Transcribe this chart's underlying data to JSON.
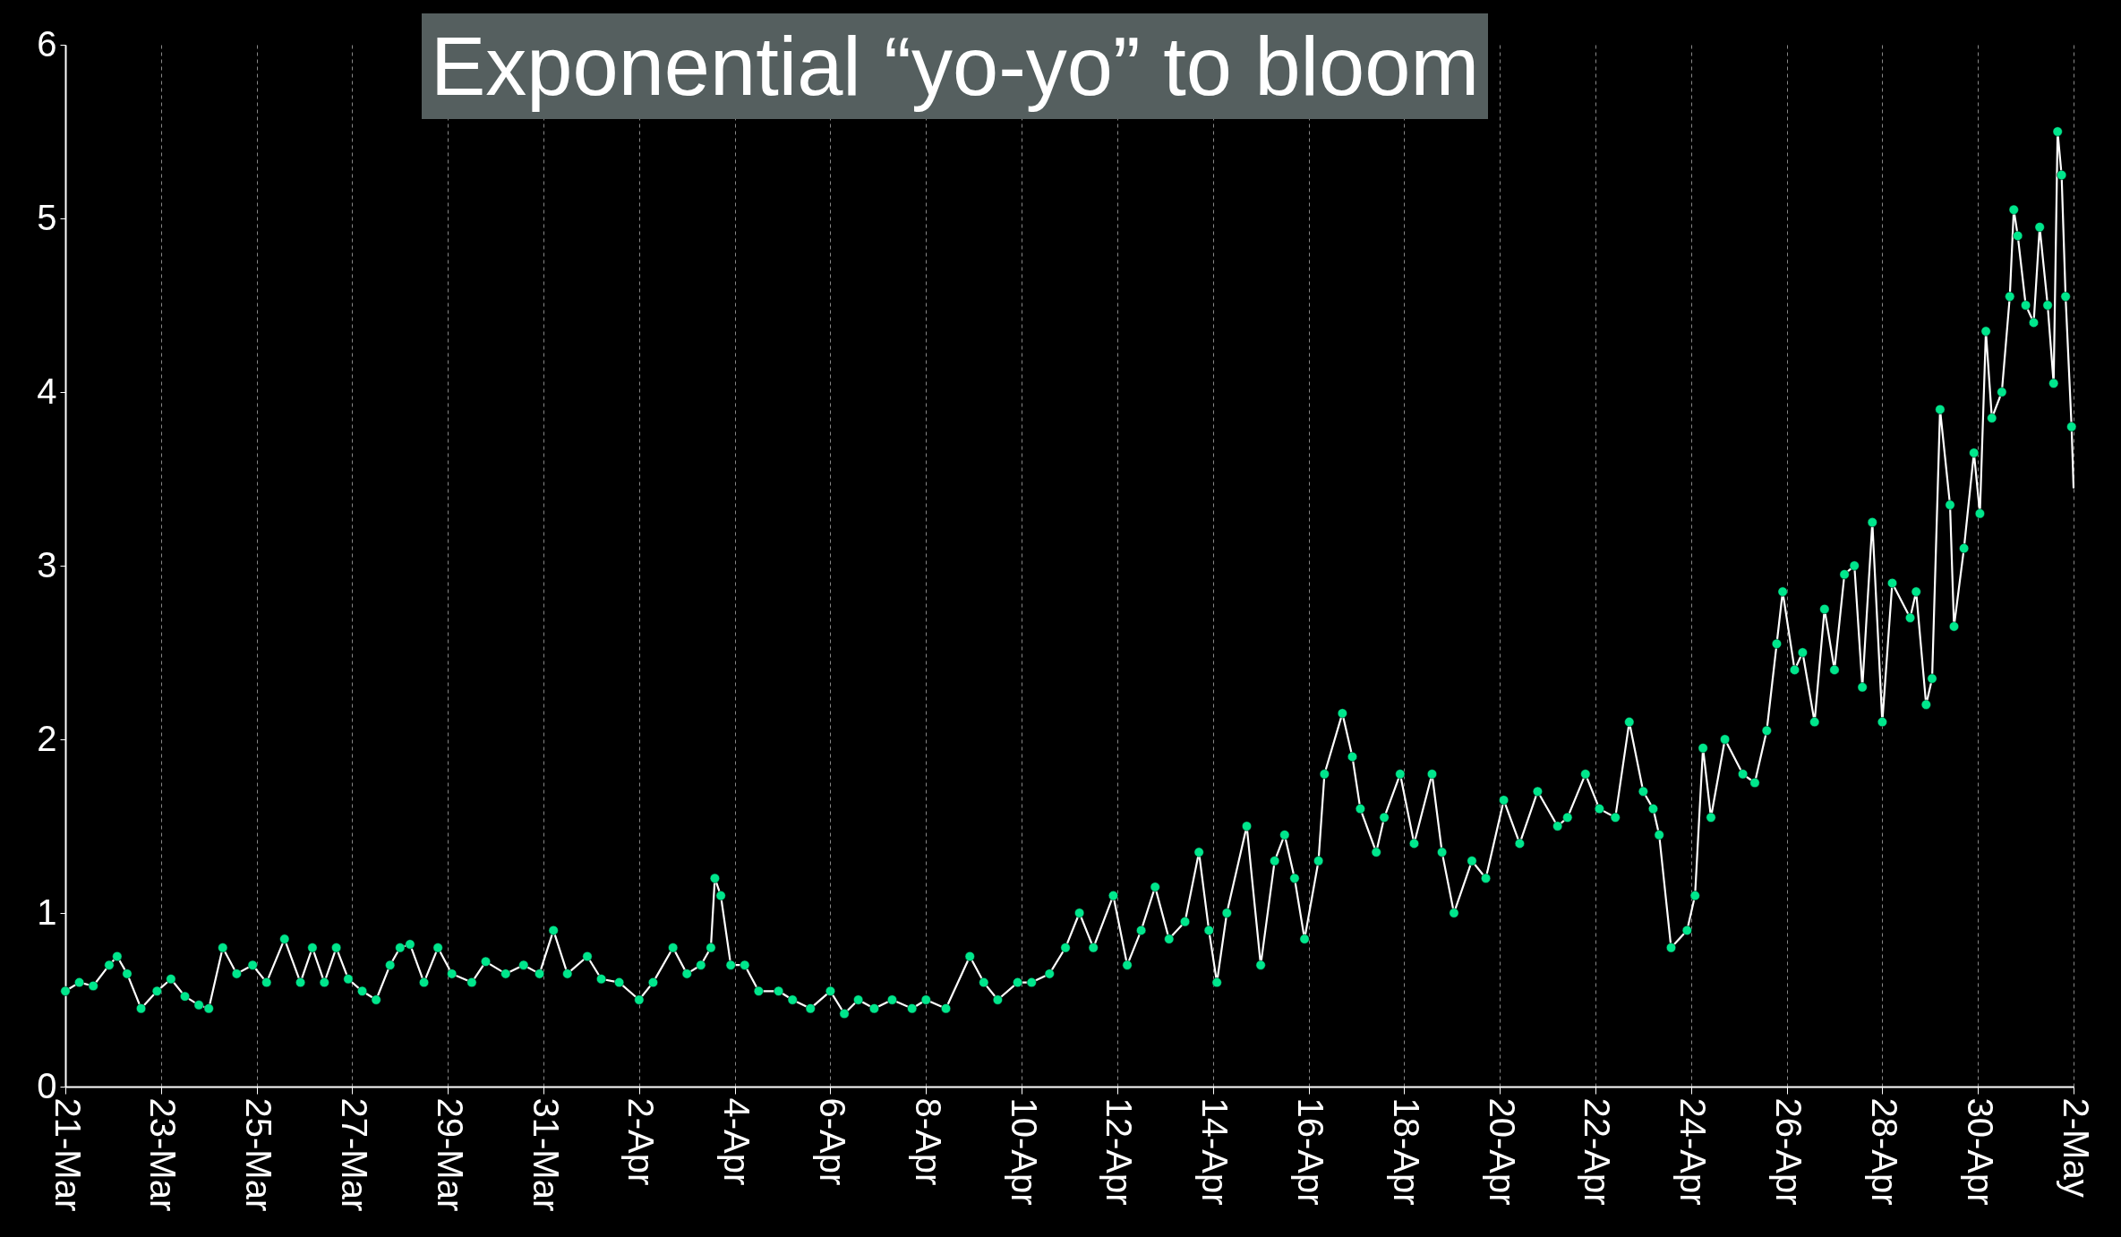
{
  "chart_data": {
    "type": "line",
    "title": "Exponential “yo-yo” to bloom",
    "marker": "circle",
    "grid": "x",
    "xlim": [
      "--03-21",
      "--05-02"
    ],
    "ylim": [
      0,
      6
    ],
    "yticks": [
      0,
      1,
      2,
      3,
      4,
      5,
      6
    ],
    "xticks": [
      {
        "value": "--03-21",
        "label": "21-Mar"
      },
      {
        "value": "--03-23",
        "label": "23-Mar"
      },
      {
        "value": "--03-25",
        "label": "25-Mar"
      },
      {
        "value": "--03-27",
        "label": "27-Mar"
      },
      {
        "value": "--03-29",
        "label": "29-Mar"
      },
      {
        "value": "--03-31",
        "label": "31-Mar"
      },
      {
        "value": "--04-02",
        "label": "2-Apr"
      },
      {
        "value": "--04-04",
        "label": "4-Apr"
      },
      {
        "value": "--04-06",
        "label": "6-Apr"
      },
      {
        "value": "--04-08",
        "label": "8-Apr"
      },
      {
        "value": "--04-10",
        "label": "10-Apr"
      },
      {
        "value": "--04-12",
        "label": "12-Apr"
      },
      {
        "value": "--04-14",
        "label": "14-Apr"
      },
      {
        "value": "--04-16",
        "label": "16-Apr"
      },
      {
        "value": "--04-18",
        "label": "18-Apr"
      },
      {
        "value": "--04-20",
        "label": "20-Apr"
      },
      {
        "value": "--04-22",
        "label": "22-Apr"
      },
      {
        "value": "--04-24",
        "label": "24-Apr"
      },
      {
        "value": "--04-26",
        "label": "26-Apr"
      },
      {
        "value": "--04-28",
        "label": "28-Apr"
      },
      {
        "value": "--04-30",
        "label": "30-Apr"
      },
      {
        "value": "--05-02",
        "label": "2-May"
      }
    ],
    "x": [
      "--03-21T00:00",
      "--03-21T07:00",
      "--03-21T14:00",
      "--03-21T22:00",
      "--03-22T02:00",
      "--03-22T07:00",
      "--03-22T14:00",
      "--03-22T22:00",
      "--03-23T05:00",
      "--03-23T12:00",
      "--03-23T19:00",
      "--03-24T00:00",
      "--03-24T07:00",
      "--03-24T14:00",
      "--03-24T22:00",
      "--03-25T05:00",
      "--03-25T14:00",
      "--03-25T22:00",
      "--03-26T04:00",
      "--03-26T10:00",
      "--03-26T16:00",
      "--03-26T22:00",
      "--03-27T05:00",
      "--03-27T12:00",
      "--03-27T19:00",
      "--03-28T00:00",
      "--03-28T05:00",
      "--03-28T12:00",
      "--03-28T19:00",
      "--03-29T02:00",
      "--03-29T12:00",
      "--03-29T19:00",
      "--03-30T05:00",
      "--03-30T14:00",
      "--03-30T22:00",
      "--03-31T05:00",
      "--03-31T12:00",
      "--03-31T22:00",
      "--04-01T05:00",
      "--04-01T14:00",
      "--04-02T00:00",
      "--04-02T07:00",
      "--04-02T17:00",
      "--04-03T00:00",
      "--04-03T07:00",
      "--04-03T12:00",
      "--04-03T14:00",
      "--04-03T17:00",
      "--04-03T22:00",
      "--04-04T05:00",
      "--04-04T12:00",
      "--04-04T22:00",
      "--04-05T05:00",
      "--04-05T14:00",
      "--04-06T00:00",
      "--04-06T07:00",
      "--04-06T14:00",
      "--04-06T22:00",
      "--04-07T07:00",
      "--04-07T17:00",
      "--04-08T00:00",
      "--04-08T10:00",
      "--04-08T22:00",
      "--04-09T05:00",
      "--04-09T12:00",
      "--04-09T22:00",
      "--04-10T05:00",
      "--04-10T14:00",
      "--04-10T22:00",
      "--04-11T05:00",
      "--04-11T12:00",
      "--04-11T22:00",
      "--04-12T05:00",
      "--04-12T12:00",
      "--04-12T19:00",
      "--04-13T02:00",
      "--04-13T10:00",
      "--04-13T17:00",
      "--04-13T22:00",
      "--04-14T02:00",
      "--04-14T07:00",
      "--04-14T17:00",
      "--04-15T00:00",
      "--04-15T07:00",
      "--04-15T12:00",
      "--04-15T17:00",
      "--04-15T22:00",
      "--04-16T05:00",
      "--04-16T08:00",
      "--04-16T17:00",
      "--04-16T22:00",
      "--04-17T02:00",
      "--04-17T10:00",
      "--04-17T14:00",
      "--04-17T22:00",
      "--04-18T05:00",
      "--04-18T14:00",
      "--04-18T19:00",
      "--04-19T01:00",
      "--04-19T10:00",
      "--04-19T17:00",
      "--04-20T02:00",
      "--04-20T10:00",
      "--04-20T19:00",
      "--04-21T05:00",
      "--04-21T10:00",
      "--04-21T19:00",
      "--04-22T02:00",
      "--04-22T10:00",
      "--04-22T17:00",
      "--04-23T00:00",
      "--04-23T05:00",
      "--04-23T08:00",
      "--04-23T14:00",
      "--04-23T22:00",
      "--04-24T02:00",
      "--04-24T06:00",
      "--04-24T10:00",
      "--04-24T17:00",
      "--04-25T02:00",
      "--04-25T08:00",
      "--04-25T14:00",
      "--04-25T19:00",
      "--04-25T22:00",
      "--04-26T04:00",
      "--04-26T08:00",
      "--04-26T14:00",
      "--04-26T19:00",
      "--04-27T00:00",
      "--04-27T05:00",
      "--04-27T10:00",
      "--04-27T14:00",
      "--04-27T19:00",
      "--04-28T00:00",
      "--04-28T05:00",
      "--04-28T14:00",
      "--04-28T17:00",
      "--04-28T22:00",
      "--04-29T01:00",
      "--04-29T05:00",
      "--04-29T10:00",
      "--04-29T12:00",
      "--04-29T17:00",
      "--04-29T22:00",
      "--04-30T01:00",
      "--04-30T04:00",
      "--04-30T07:00",
      "--04-30T12:00",
      "--04-30T16:00",
      "--04-30T18:00",
      "--04-30T20:00",
      "--05-01T00:00",
      "--05-01T04:00",
      "--05-01T07:00",
      "--05-01T11:00",
      "--05-01T14:00",
      "--05-01T16:00",
      "--05-01T18:00",
      "--05-01T20:00",
      "--05-01T23:00",
      "--05-02T00:00"
    ],
    "series": [
      {
        "color": "#00e68c",
        "values": [
          0.55,
          0.6,
          0.58,
          0.7,
          0.75,
          0.65,
          0.45,
          0.55,
          0.62,
          0.52,
          0.47,
          0.45,
          0.8,
          0.65,
          0.7,
          0.6,
          0.85,
          0.6,
          0.8,
          0.6,
          0.8,
          0.62,
          0.55,
          0.5,
          0.7,
          0.8,
          0.82,
          0.6,
          0.8,
          0.65,
          0.6,
          0.72,
          0.65,
          0.7,
          0.65,
          0.9,
          0.65,
          0.75,
          0.62,
          0.6,
          0.5,
          0.6,
          0.8,
          0.65,
          0.7,
          0.8,
          1.2,
          1.1,
          0.7,
          0.7,
          0.55,
          0.55,
          0.5,
          0.45,
          0.55,
          0.42,
          0.5,
          0.45,
          0.5,
          0.45,
          0.5,
          0.45,
          0.75,
          0.6,
          0.5,
          0.6,
          0.6,
          0.65,
          0.8,
          1.0,
          0.8,
          1.1,
          0.7,
          0.9,
          1.15,
          0.85,
          0.95,
          1.35,
          0.9,
          0.6,
          1.0,
          1.5,
          0.7,
          1.3,
          1.45,
          1.2,
          0.85,
          1.3,
          1.8,
          2.15,
          1.9,
          1.6,
          1.35,
          1.55,
          1.8,
          1.4,
          1.8,
          1.35,
          1.0,
          1.3,
          1.2,
          1.65,
          1.4,
          1.7,
          1.5,
          1.55,
          1.8,
          1.6,
          1.55,
          2.1,
          1.7,
          1.6,
          1.45,
          0.8,
          0.9,
          1.1,
          1.95,
          1.55,
          2.0,
          1.8,
          1.75,
          2.05,
          2.55,
          2.85,
          2.4,
          2.5,
          2.1,
          2.75,
          2.4,
          2.95,
          3.0,
          2.3,
          3.25,
          2.1,
          2.9,
          2.7,
          2.85,
          2.2,
          2.35,
          3.9,
          3.35,
          2.65,
          3.1,
          3.65,
          3.3,
          4.35,
          3.85,
          4.0,
          4.55,
          5.05,
          4.9,
          4.5,
          4.4,
          4.95,
          4.5,
          4.05,
          5.5,
          5.25,
          4.55,
          3.8,
          3.45
        ]
      }
    ]
  }
}
